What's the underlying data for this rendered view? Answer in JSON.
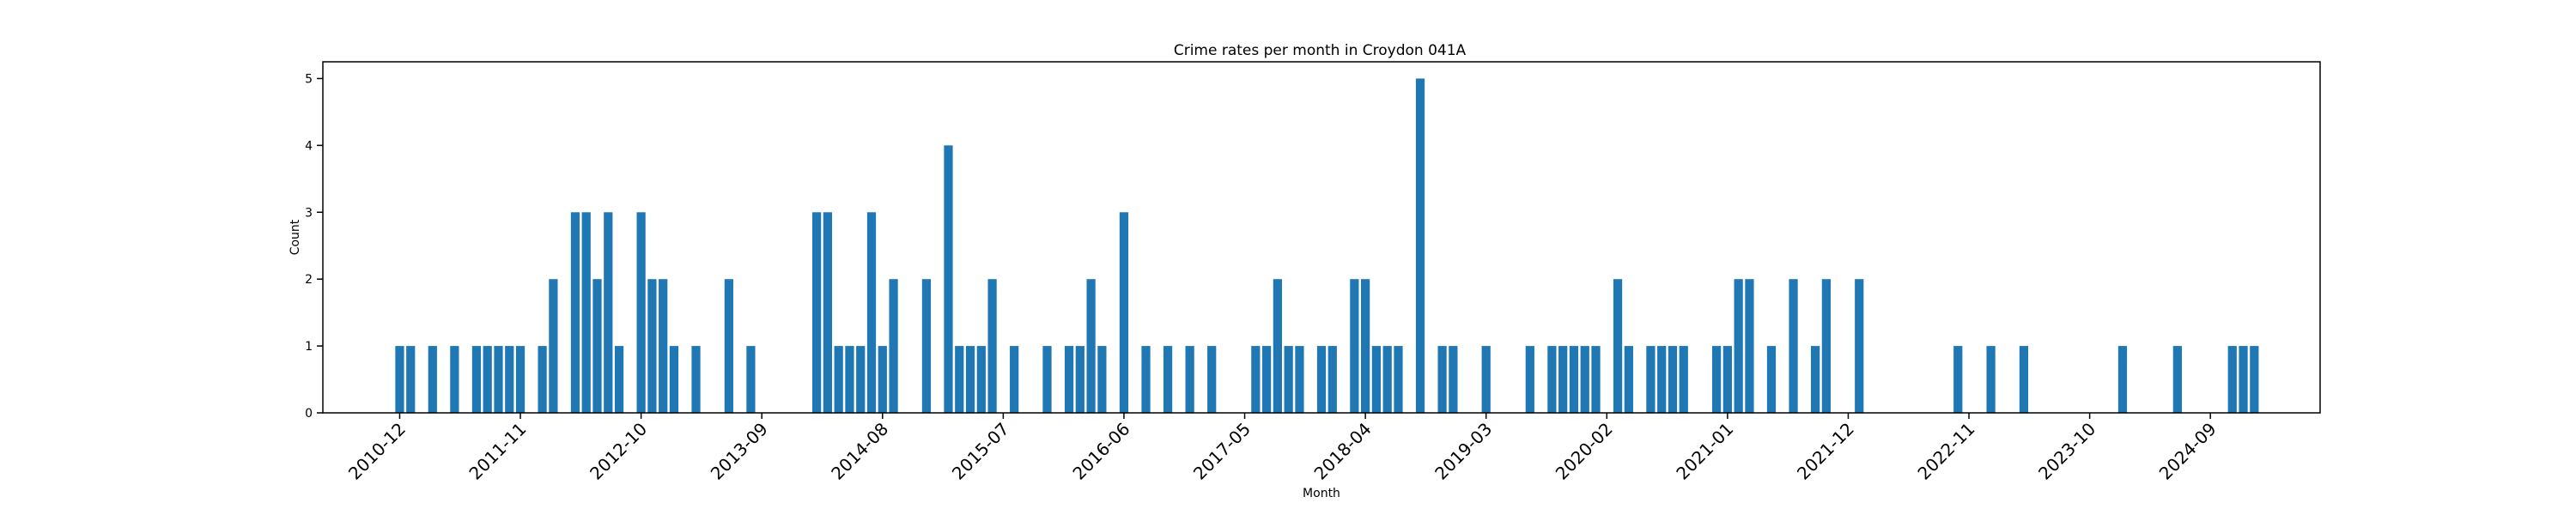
{
  "chart_data": {
    "type": "bar",
    "title": "Crime rates per month in Croydon 041A",
    "xlabel": "Month",
    "ylabel": "Count",
    "ylim": [
      0,
      5.25
    ],
    "y_ticks": [
      "0",
      "1",
      "2",
      "3",
      "4",
      "5"
    ],
    "x_ticks": [
      "2010-12",
      "2011-11",
      "2012-10",
      "2013-09",
      "2014-08",
      "2015-07",
      "2016-06",
      "2017-05",
      "2018-04",
      "2019-03",
      "2020-02",
      "2021-01",
      "2021-12",
      "2022-11",
      "2023-10",
      "2024-09"
    ],
    "bar_color": "#1f77b4",
    "grid": false,
    "bars": [
      {
        "x": "2010-12",
        "y": 1
      },
      {
        "x": "2011-01",
        "y": 1
      },
      {
        "x": "2011-03",
        "y": 1
      },
      {
        "x": "2011-05",
        "y": 1
      },
      {
        "x": "2011-07",
        "y": 1
      },
      {
        "x": "2011-08",
        "y": 1
      },
      {
        "x": "2011-09",
        "y": 1
      },
      {
        "x": "2011-10",
        "y": 1
      },
      {
        "x": "2011-11",
        "y": 1
      },
      {
        "x": "2012-01",
        "y": 1
      },
      {
        "x": "2012-02",
        "y": 2
      },
      {
        "x": "2012-04",
        "y": 3
      },
      {
        "x": "2012-05",
        "y": 3
      },
      {
        "x": "2012-06",
        "y": 2
      },
      {
        "x": "2012-07",
        "y": 3
      },
      {
        "x": "2012-08",
        "y": 1
      },
      {
        "x": "2012-10",
        "y": 3
      },
      {
        "x": "2012-11",
        "y": 2
      },
      {
        "x": "2012-12",
        "y": 2
      },
      {
        "x": "2013-01",
        "y": 1
      },
      {
        "x": "2013-03",
        "y": 1
      },
      {
        "x": "2013-06",
        "y": 2
      },
      {
        "x": "2013-08",
        "y": 1
      },
      {
        "x": "2014-02",
        "y": 3
      },
      {
        "x": "2014-03",
        "y": 3
      },
      {
        "x": "2014-04",
        "y": 1
      },
      {
        "x": "2014-05",
        "y": 1
      },
      {
        "x": "2014-06",
        "y": 1
      },
      {
        "x": "2014-07",
        "y": 3
      },
      {
        "x": "2014-08",
        "y": 1
      },
      {
        "x": "2014-09",
        "y": 2
      },
      {
        "x": "2014-12",
        "y": 2
      },
      {
        "x": "2015-02",
        "y": 4
      },
      {
        "x": "2015-03",
        "y": 1
      },
      {
        "x": "2015-04",
        "y": 1
      },
      {
        "x": "2015-05",
        "y": 1
      },
      {
        "x": "2015-06",
        "y": 2
      },
      {
        "x": "2015-08",
        "y": 1
      },
      {
        "x": "2015-11",
        "y": 1
      },
      {
        "x": "2016-01",
        "y": 1
      },
      {
        "x": "2016-02",
        "y": 1
      },
      {
        "x": "2016-03",
        "y": 2
      },
      {
        "x": "2016-04",
        "y": 1
      },
      {
        "x": "2016-06",
        "y": 3
      },
      {
        "x": "2016-08",
        "y": 1
      },
      {
        "x": "2016-10",
        "y": 1
      },
      {
        "x": "2016-12",
        "y": 1
      },
      {
        "x": "2017-02",
        "y": 1
      },
      {
        "x": "2017-06",
        "y": 1
      },
      {
        "x": "2017-07",
        "y": 1
      },
      {
        "x": "2017-08",
        "y": 2
      },
      {
        "x": "2017-09",
        "y": 1
      },
      {
        "x": "2017-10",
        "y": 1
      },
      {
        "x": "2017-12",
        "y": 1
      },
      {
        "x": "2018-01",
        "y": 1
      },
      {
        "x": "2018-03",
        "y": 2
      },
      {
        "x": "2018-04",
        "y": 2
      },
      {
        "x": "2018-05",
        "y": 1
      },
      {
        "x": "2018-06",
        "y": 1
      },
      {
        "x": "2018-07",
        "y": 1
      },
      {
        "x": "2018-09",
        "y": 5
      },
      {
        "x": "2018-11",
        "y": 1
      },
      {
        "x": "2018-12",
        "y": 1
      },
      {
        "x": "2019-03",
        "y": 1
      },
      {
        "x": "2019-07",
        "y": 1
      },
      {
        "x": "2019-09",
        "y": 1
      },
      {
        "x": "2019-10",
        "y": 1
      },
      {
        "x": "2019-11",
        "y": 1
      },
      {
        "x": "2019-12",
        "y": 1
      },
      {
        "x": "2020-01",
        "y": 1
      },
      {
        "x": "2020-03",
        "y": 2
      },
      {
        "x": "2020-04",
        "y": 1
      },
      {
        "x": "2020-06",
        "y": 1
      },
      {
        "x": "2020-07",
        "y": 1
      },
      {
        "x": "2020-08",
        "y": 1
      },
      {
        "x": "2020-09",
        "y": 1
      },
      {
        "x": "2020-12",
        "y": 1
      },
      {
        "x": "2021-01",
        "y": 1
      },
      {
        "x": "2021-02",
        "y": 2
      },
      {
        "x": "2021-03",
        "y": 2
      },
      {
        "x": "2021-05",
        "y": 1
      },
      {
        "x": "2021-07",
        "y": 2
      },
      {
        "x": "2021-09",
        "y": 1
      },
      {
        "x": "2021-10",
        "y": 2
      },
      {
        "x": "2022-01",
        "y": 2
      },
      {
        "x": "2022-10",
        "y": 1
      },
      {
        "x": "2023-01",
        "y": 1
      },
      {
        "x": "2023-04",
        "y": 1
      },
      {
        "x": "2024-01",
        "y": 1
      },
      {
        "x": "2024-06",
        "y": 1
      },
      {
        "x": "2024-11",
        "y": 1
      },
      {
        "x": "2024-12",
        "y": 1
      },
      {
        "x": "2025-01",
        "y": 1
      }
    ]
  }
}
